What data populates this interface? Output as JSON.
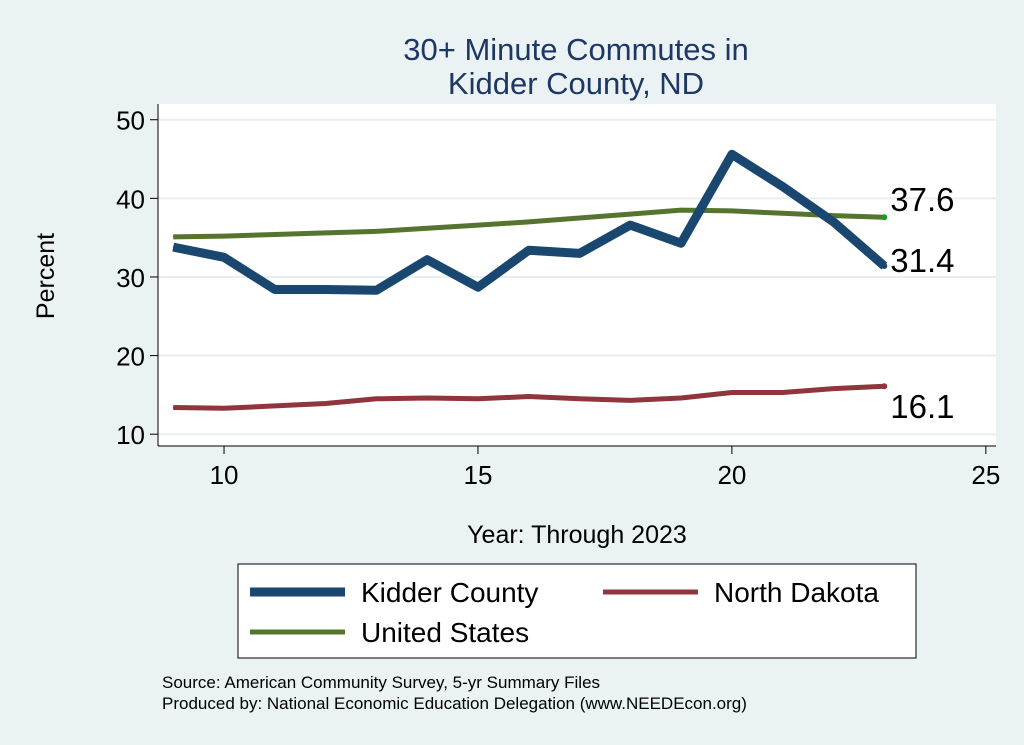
{
  "chart_data": {
    "type": "line",
    "title": "30+ Minute Commutes in",
    "subtitle": "Kidder County, ND",
    "xlabel": "Year: Through 2023",
    "ylabel": "Percent",
    "xlim": [
      8.7,
      25.2
    ],
    "ylim": [
      8.5,
      52
    ],
    "xticks": [
      10,
      15,
      20,
      25
    ],
    "yticks": [
      10,
      20,
      30,
      40,
      50
    ],
    "grid": true,
    "legend_position": "bottom",
    "series": [
      {
        "name": "Kidder County",
        "color": "#1a476f",
        "x": [
          9,
          10,
          11,
          12,
          13,
          14,
          15,
          16,
          17,
          18,
          19,
          20,
          21,
          22,
          23
        ],
        "values": [
          33.8,
          32.5,
          28.4,
          28.4,
          28.3,
          32.2,
          28.7,
          33.4,
          33.0,
          36.6,
          34.3,
          45.6,
          41.5,
          37.0,
          31.4
        ],
        "end_label": "31.4"
      },
      {
        "name": "North Dakota",
        "color": "#90353b",
        "x": [
          9,
          10,
          11,
          12,
          13,
          14,
          15,
          16,
          17,
          18,
          19,
          20,
          21,
          22,
          23
        ],
        "values": [
          13.4,
          13.3,
          13.6,
          13.9,
          14.5,
          14.6,
          14.5,
          14.8,
          14.5,
          14.3,
          14.6,
          15.3,
          15.3,
          15.8,
          16.1
        ],
        "end_label": "16.1"
      },
      {
        "name": "United States",
        "color": "#55752f",
        "x": [
          9,
          10,
          11,
          12,
          13,
          14,
          15,
          16,
          17,
          18,
          19,
          20,
          21,
          22,
          23
        ],
        "values": [
          35.1,
          35.2,
          35.4,
          35.6,
          35.8,
          36.2,
          36.6,
          37.0,
          37.5,
          38.0,
          38.5,
          38.4,
          38.1,
          37.8,
          37.6
        ],
        "end_label": "37.6"
      }
    ],
    "notes": [
      "Source: American Community Survey, 5-yr Summary Files",
      "Produced by: National Economic Education Delegation (www.NEEDEcon.org)"
    ]
  }
}
